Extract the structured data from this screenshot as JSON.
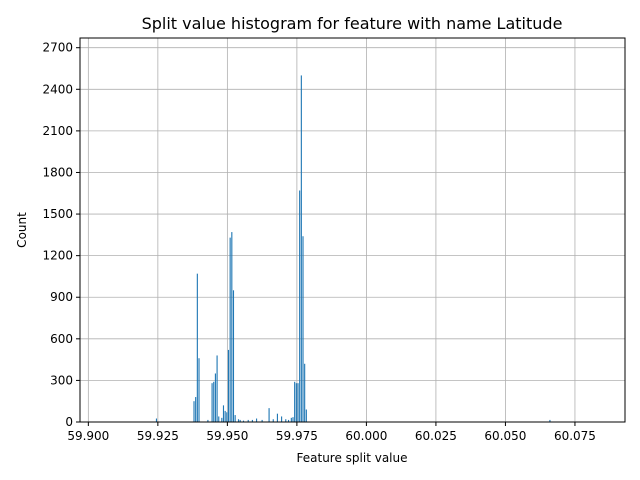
{
  "chart_data": {
    "type": "bar",
    "title": "Split value histogram for feature with name Latitude",
    "xlabel": "Feature split value",
    "ylabel": "Count",
    "xlim": [
      59.897,
      60.093
    ],
    "ylim": [
      0,
      2770
    ],
    "xticks": [
      59.9,
      59.925,
      59.95,
      59.975,
      60.0,
      60.025,
      60.05,
      60.075
    ],
    "xtick_labels": [
      "59.900",
      "59.925",
      "59.950",
      "59.975",
      "60.000",
      "60.025",
      "60.050",
      "60.075"
    ],
    "yticks": [
      0,
      300,
      600,
      900,
      1200,
      1500,
      1800,
      2100,
      2400,
      2700
    ],
    "ytick_labels": [
      "0",
      "300",
      "600",
      "900",
      "1200",
      "1500",
      "1800",
      "2100",
      "2400",
      "2700"
    ],
    "grid": true,
    "bar_color": "#1f77b4",
    "bar_width": 0.0004,
    "x": [
      59.9245,
      59.938,
      59.9386,
      59.9392,
      59.9398,
      59.943,
      59.9445,
      59.9451,
      59.9457,
      59.9463,
      59.9469,
      59.948,
      59.9486,
      59.9492,
      59.9498,
      59.9504,
      59.951,
      59.9516,
      59.9522,
      59.9528,
      59.954,
      59.9546,
      59.9558,
      59.9575,
      59.959,
      59.9605,
      59.9625,
      59.965,
      59.9665,
      59.968,
      59.9695,
      59.971,
      59.972,
      59.973,
      59.9736,
      59.9742,
      59.9748,
      59.9754,
      59.976,
      59.9766,
      59.9772,
      59.9778,
      59.9784,
      59.979,
      60.066
    ],
    "values": [
      25,
      150,
      180,
      1070,
      460,
      15,
      280,
      290,
      350,
      480,
      40,
      30,
      120,
      80,
      70,
      520,
      1330,
      1370,
      950,
      50,
      20,
      15,
      10,
      15,
      15,
      25,
      15,
      100,
      20,
      60,
      40,
      20,
      15,
      30,
      35,
      290,
      280,
      280,
      1670,
      2500,
      1340,
      420,
      90,
      0,
      15
    ]
  }
}
